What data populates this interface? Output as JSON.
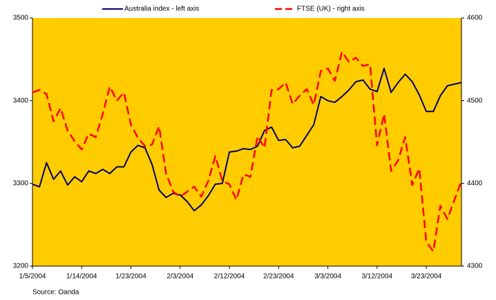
{
  "chart_data": {
    "type": "line",
    "source": "Source: Oanda",
    "categories": [
      "1/5/2004",
      null,
      null,
      null,
      null,
      null,
      null,
      "1/14/2004",
      null,
      null,
      null,
      null,
      null,
      null,
      "1/23/2004",
      null,
      null,
      null,
      null,
      null,
      null,
      "2/3/2004",
      null,
      null,
      null,
      null,
      null,
      null,
      "2/12/2004",
      null,
      null,
      null,
      null,
      null,
      null,
      "2/23/2004",
      null,
      null,
      null,
      null,
      null,
      null,
      "3/3/2004",
      null,
      null,
      null,
      null,
      null,
      null,
      "3/12/2004",
      null,
      null,
      null,
      null,
      null,
      null,
      "3/23/2004",
      null,
      null,
      null,
      null,
      null
    ],
    "series": [
      {
        "name": "Australia index -  left axis",
        "color": "#000066",
        "dashed": false,
        "values": [
          3299,
          3296,
          3325,
          3305,
          3315,
          3298,
          3308,
          3302,
          3315,
          3312,
          3317,
          3312,
          3320,
          3320,
          3338,
          3346,
          3343,
          3323,
          3292,
          3283,
          3288,
          3286,
          3278,
          3267,
          3274,
          3285,
          3299,
          3300,
          3338,
          3339,
          3342,
          3341,
          3345,
          3364,
          3368,
          3352,
          3353,
          3343,
          3345,
          3358,
          3371,
          3405,
          3400,
          3398,
          3405,
          3413,
          3423,
          3425,
          3414,
          3411,
          3439,
          3410,
          3422,
          3432,
          3423,
          3407,
          3387,
          3387,
          3406,
          3418,
          3420,
          3422
        ]
      },
      {
        "name": "FTSE (UK) - right axis",
        "color": "#FF0000",
        "dashed": true,
        "axis": "y2",
        "values": [
          4510,
          4513,
          4508,
          4475,
          4491,
          4464,
          4451,
          4441,
          4460,
          4456,
          4484,
          4517,
          4500,
          4510,
          4471,
          4455,
          4445,
          4447,
          4469,
          4412,
          4390,
          4384,
          4390,
          4396,
          4384,
          4403,
          4433,
          4403,
          4399,
          4380,
          4411,
          4408,
          4457,
          4443,
          4513,
          4514,
          4522,
          4496,
          4506,
          4514,
          4495,
          4536,
          4539,
          4524,
          4559,
          4547,
          4552,
          4542,
          4544,
          4446,
          4484,
          4415,
          4428,
          4456,
          4398,
          4418,
          4329,
          4318,
          4373,
          4357,
          4380,
          4403
        ]
      }
    ],
    "ylim": [
      3200,
      3500
    ],
    "yticks": [
      3200,
      3300,
      3400,
      3500
    ],
    "y2lim": [
      4300,
      4600
    ],
    "y2ticks": [
      4300,
      4400,
      4500,
      4600
    ],
    "plot_background": "#FFCC00",
    "legend": "top"
  }
}
